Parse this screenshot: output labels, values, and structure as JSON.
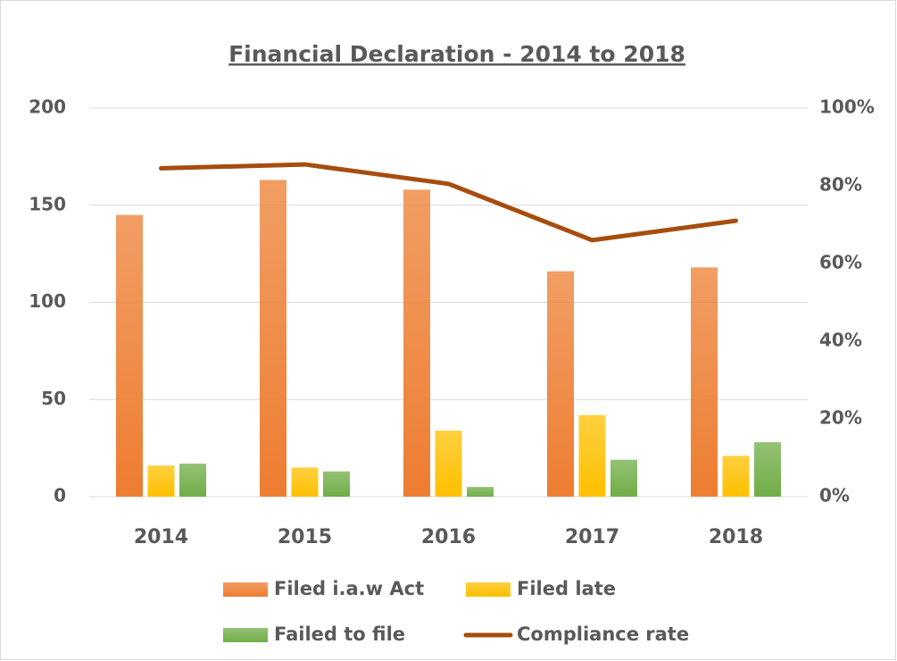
{
  "chart_data": {
    "type": "bar",
    "title": "Financial Declaration - 2014 to 2018",
    "categories": [
      "2014",
      "2015",
      "2016",
      "2017",
      "2018"
    ],
    "series": [
      {
        "name": "Filed i.a.w Act",
        "color": "#ed7d31",
        "values": [
          145,
          163,
          158,
          116,
          118
        ]
      },
      {
        "name": "Filed late",
        "color": "#ffc000",
        "values": [
          16,
          15,
          34,
          42,
          21
        ]
      },
      {
        "name": "Failed to file",
        "color": "#70ad47",
        "values": [
          17,
          13,
          5,
          19,
          28
        ]
      },
      {
        "name": "Compliance rate",
        "color": "#a64d0f",
        "type": "line",
        "axis": "y2",
        "values": [
          84.5,
          85.5,
          80.5,
          66,
          71
        ]
      }
    ],
    "ylim": [
      0,
      200
    ],
    "yticks": [
      0,
      50,
      100,
      150,
      200
    ],
    "y2lim": [
      0,
      100
    ],
    "y2ticks": [
      {
        "value": 0,
        "label": "0%"
      },
      {
        "value": 20,
        "label": "20%"
      },
      {
        "value": 40,
        "label": "40%"
      },
      {
        "value": 60,
        "label": "60%"
      },
      {
        "value": 80,
        "label": "80%"
      },
      {
        "value": 100,
        "label": "100%"
      }
    ],
    "grid": true,
    "legend": "bottom"
  }
}
